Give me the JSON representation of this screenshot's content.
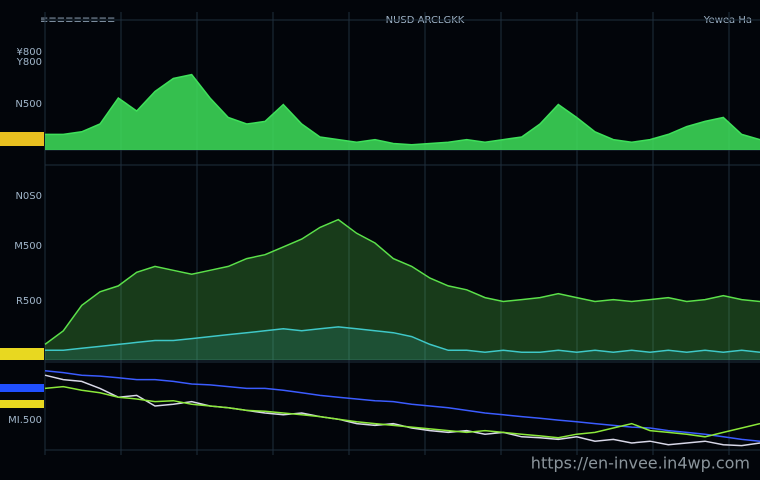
{
  "header": {
    "title": "NUSD ARCLGKK",
    "corner": "Yewea Ha",
    "ticker": "≡≡≡≡≡≡≡≡≡"
  },
  "side_labels": [
    "¥800",
    "Y800",
    "N500",
    "N0S0",
    "M500",
    "R500",
    "MI.500"
  ],
  "watermark": "https://en-invee.in4wp.com",
  "chart_data": [
    {
      "type": "area",
      "ylim": [
        0,
        100
      ],
      "grid": true,
      "series": [
        {
          "color": "#3ee05a",
          "values": [
            12,
            12,
            14,
            20,
            40,
            30,
            45,
            55,
            58,
            40,
            25,
            20,
            22,
            35,
            20,
            10,
            8,
            6,
            8,
            5,
            4,
            5,
            6,
            8,
            6,
            8,
            10,
            20,
            35,
            25,
            14,
            8,
            6,
            8,
            12,
            18,
            22,
            25,
            12,
            8
          ]
        }
      ]
    },
    {
      "type": "area",
      "ylim": [
        0,
        100
      ],
      "grid": true,
      "series": [
        {
          "color": "#5be04a",
          "values": [
            8,
            15,
            28,
            35,
            38,
            45,
            48,
            46,
            44,
            46,
            48,
            52,
            54,
            58,
            62,
            68,
            72,
            65,
            60,
            52,
            48,
            42,
            38,
            36,
            32,
            30,
            31,
            32,
            34,
            32,
            30,
            31,
            30,
            31,
            32,
            30,
            31,
            33,
            31,
            30
          ]
        },
        {
          "color": "#3fc8c8",
          "values": [
            5,
            5,
            6,
            7,
            8,
            9,
            10,
            10,
            11,
            12,
            13,
            14,
            15,
            16,
            15,
            16,
            17,
            16,
            15,
            14,
            12,
            8,
            5,
            5,
            4,
            5,
            4,
            4,
            5,
            4,
            5,
            4,
            5,
            4,
            5,
            4,
            5,
            4,
            5,
            4
          ]
        }
      ]
    },
    {
      "type": "line",
      "ylim": [
        0,
        100
      ],
      "grid": true,
      "series": [
        {
          "color": "#d8d8e8",
          "values": [
            85,
            80,
            78,
            70,
            60,
            62,
            50,
            52,
            55,
            50,
            48,
            45,
            42,
            40,
            42,
            38,
            35,
            30,
            28,
            30,
            25,
            22,
            20,
            22,
            18,
            20,
            15,
            14,
            12,
            15,
            10,
            12,
            8,
            10,
            6,
            8,
            10,
            6,
            5,
            8
          ]
        },
        {
          "color": "#3b5cff",
          "values": [
            90,
            88,
            85,
            84,
            82,
            80,
            80,
            78,
            75,
            74,
            72,
            70,
            70,
            68,
            65,
            62,
            60,
            58,
            56,
            55,
            52,
            50,
            48,
            45,
            42,
            40,
            38,
            36,
            34,
            32,
            30,
            28,
            26,
            25,
            22,
            20,
            18,
            15,
            12,
            10
          ]
        },
        {
          "color": "#8be83a",
          "values": [
            70,
            72,
            68,
            65,
            60,
            58,
            55,
            56,
            52,
            50,
            48,
            45,
            44,
            42,
            40,
            38,
            35,
            32,
            30,
            28,
            26,
            24,
            22,
            20,
            22,
            20,
            18,
            16,
            14,
            18,
            20,
            25,
            30,
            22,
            20,
            18,
            15,
            20,
            25,
            30
          ]
        }
      ]
    }
  ]
}
